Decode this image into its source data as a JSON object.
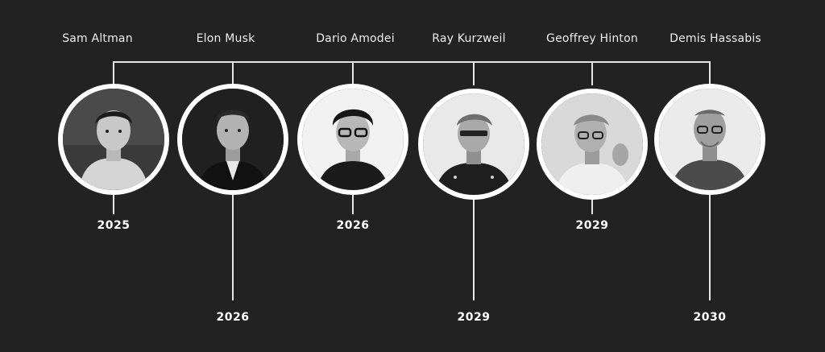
{
  "people": [
    {
      "name": "Sam Altman",
      "year": "2025"
    },
    {
      "name": "Elon Musk",
      "year": "2026"
    },
    {
      "name": "Dario Amodei",
      "year": "2026"
    },
    {
      "name": "Ray Kurzweil",
      "year": "2029"
    },
    {
      "name": "Geoffrey Hinton",
      "year": "2029"
    },
    {
      "name": "Demis Hassabis",
      "year": "2030"
    }
  ],
  "colors": {
    "background": "#222222",
    "line": "#e6e6e6",
    "text": "#eeeeee"
  }
}
